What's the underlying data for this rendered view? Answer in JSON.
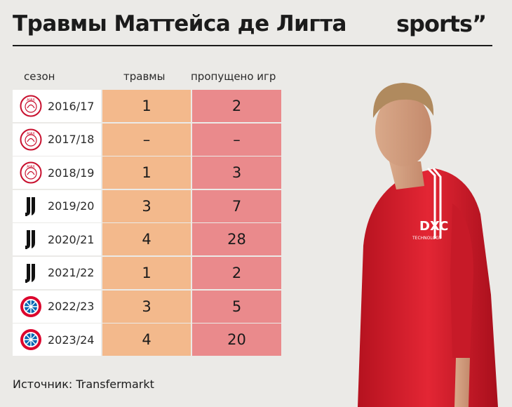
{
  "title": "Травмы Маттейса де Лигта",
  "brand": "sports”",
  "headers": {
    "season": "сезон",
    "injuries": "травмы",
    "missed": "пропущено игр"
  },
  "rows": [
    {
      "season": "2016/17",
      "injuries": "1",
      "missed": "2",
      "club_icon": "ajax-logo-icon"
    },
    {
      "season": "2017/18",
      "injuries": "–",
      "missed": "–",
      "club_icon": "ajax-logo-icon"
    },
    {
      "season": "2018/19",
      "injuries": "1",
      "missed": "3",
      "club_icon": "ajax-logo-icon"
    },
    {
      "season": "2019/20",
      "injuries": "3",
      "missed": "7",
      "club_icon": "juventus-logo-icon"
    },
    {
      "season": "2020/21",
      "injuries": "4",
      "missed": "28",
      "club_icon": "juventus-logo-icon"
    },
    {
      "season": "2021/22",
      "injuries": "1",
      "missed": "2",
      "club_icon": "juventus-logo-icon"
    },
    {
      "season": "2022/23",
      "injuries": "3",
      "missed": "5",
      "club_icon": "bayern-logo-icon"
    },
    {
      "season": "2023/24",
      "injuries": "4",
      "missed": "20",
      "club_icon": "bayern-logo-icon"
    }
  ],
  "source": "Источник: Transfermarkt",
  "colors": {
    "background": "#ebeae7",
    "injuries_col": "#f3b98c",
    "missed_col": "#ea8a8c",
    "season_col": "#ffffff",
    "shirt": "#d81e2c"
  }
}
